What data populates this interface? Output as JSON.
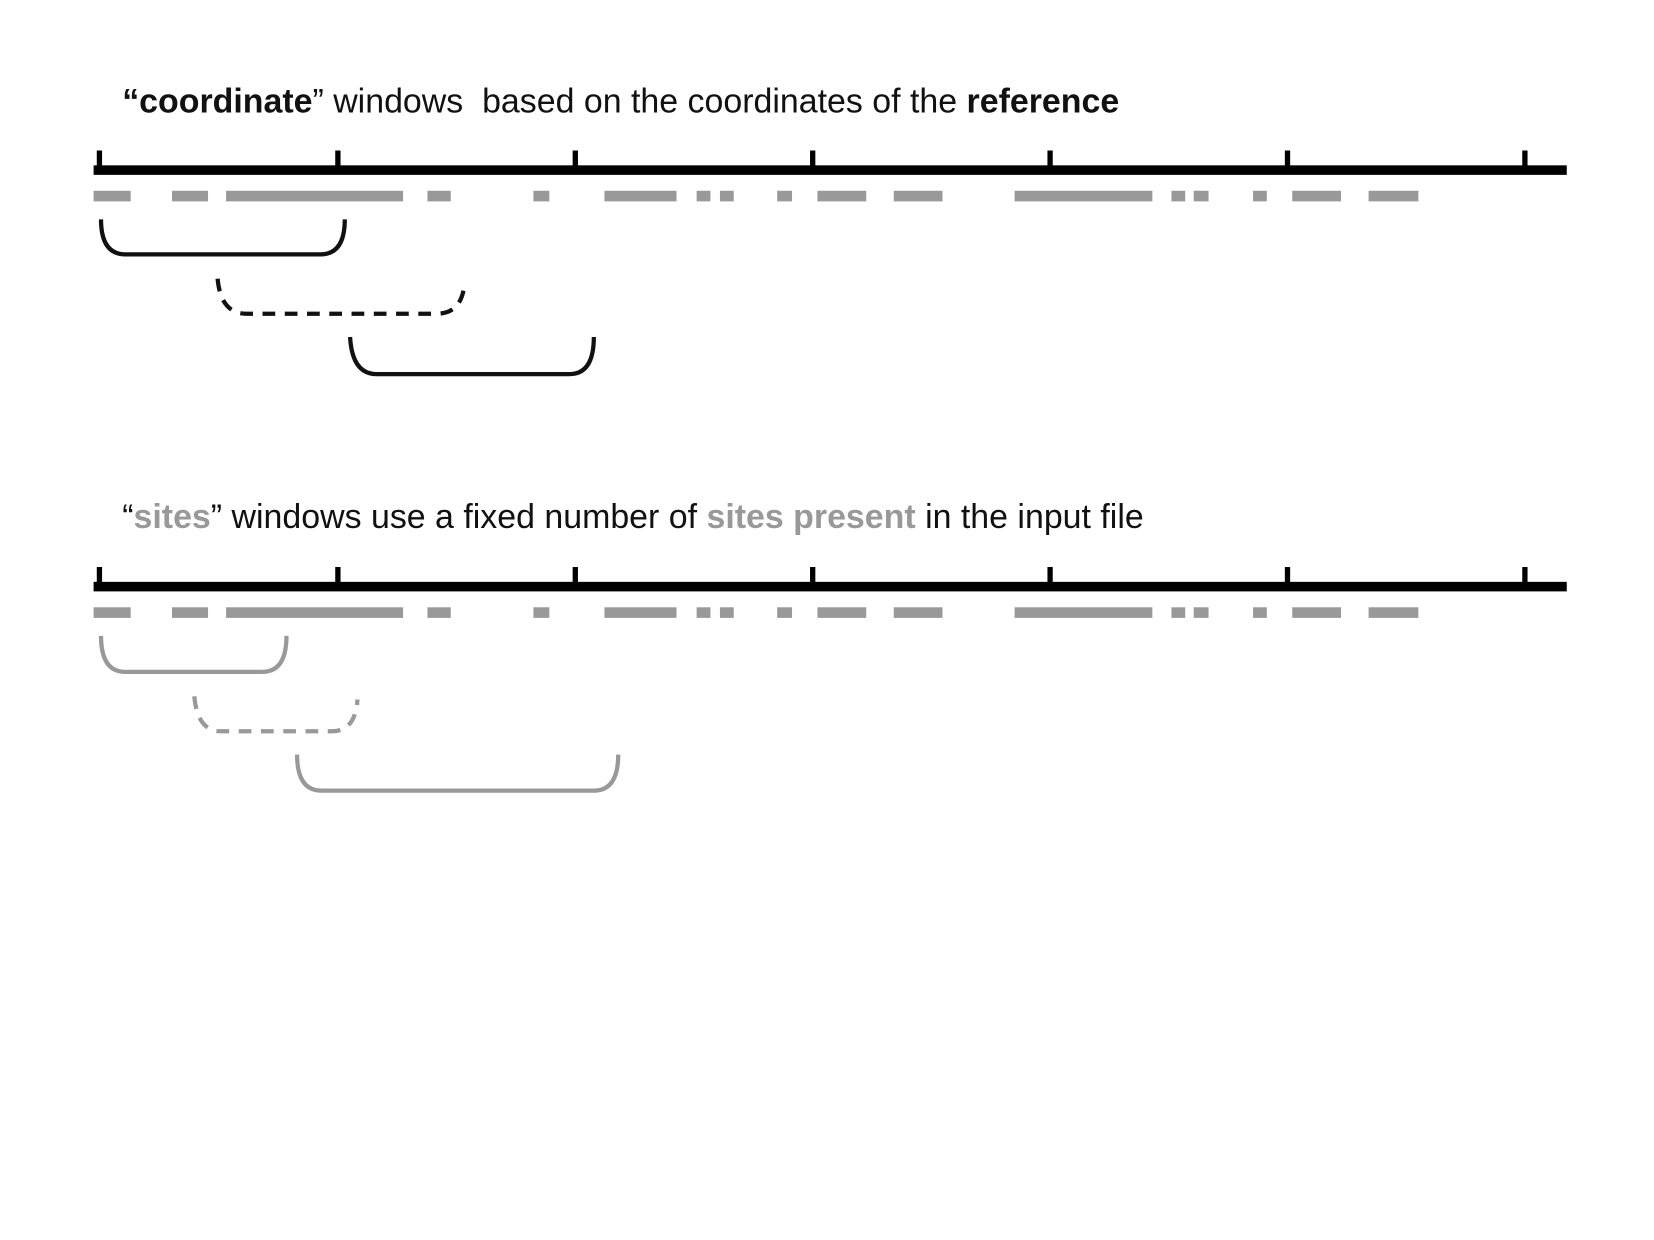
{
  "panels": [
    {
      "title_parts": [
        "“",
        "coordinate",
        "” windows  based on the coordinates of the ",
        "reference"
      ]
    },
    {
      "title_parts": [
        "“",
        "sites",
        "” windows use a fixed number of ",
        "sites present",
        " in the input file"
      ]
    }
  ]
}
